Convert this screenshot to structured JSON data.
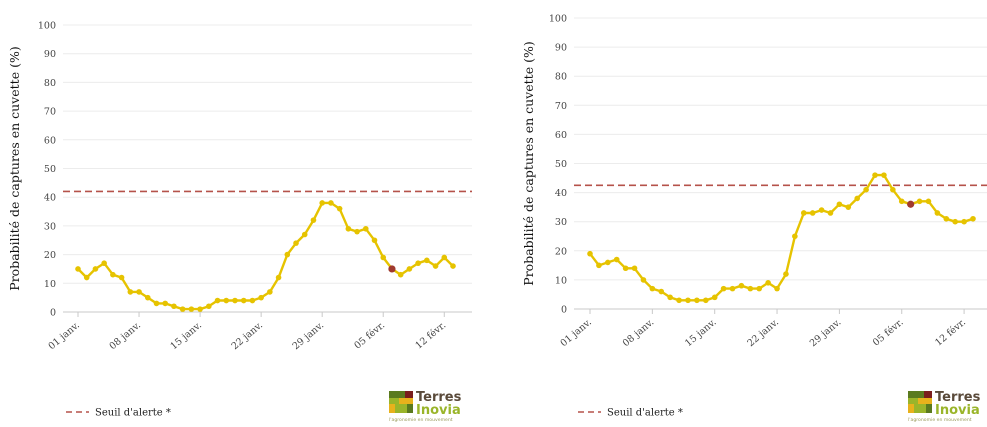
{
  "chart_data": [
    {
      "type": "line",
      "ylabel": "Probabilité de captures en cuvette (%)",
      "ylim": [
        0,
        100
      ],
      "yticks": [
        0,
        10,
        20,
        30,
        40,
        50,
        60,
        70,
        80,
        90,
        100
      ],
      "x_tick_labels": [
        "01 janv.",
        "08 janv.",
        "15 janv.",
        "22 janv.",
        "29 janv.",
        "05 févr.",
        "12 févr."
      ],
      "x_tick_index": [
        0,
        7,
        14,
        21,
        28,
        35,
        42
      ],
      "series": [
        {
          "values": [
            15,
            12,
            15,
            17,
            13,
            12,
            7,
            7,
            5,
            3,
            3,
            2,
            1,
            1,
            1,
            2,
            4,
            4,
            4,
            4,
            4,
            5,
            7,
            12,
            20,
            24,
            27,
            32,
            38,
            38,
            36,
            29,
            28,
            29,
            25,
            19,
            15,
            13,
            15,
            17,
            18,
            16,
            19,
            16
          ],
          "color": "#e6c300",
          "highlight_index": 36,
          "highlight_color": "#a03a2e"
        }
      ],
      "threshold": {
        "label": "Seuil d'alerte *",
        "value": 42,
        "color": "#b5524a",
        "style": "dashed"
      },
      "legend_position": "bottom-left",
      "grid": "horizontal"
    },
    {
      "type": "line",
      "ylabel": "Probabilité de captures en cuvette (%)",
      "ylim": [
        0,
        100
      ],
      "yticks": [
        0,
        10,
        20,
        30,
        40,
        50,
        60,
        70,
        80,
        90,
        100
      ],
      "x_tick_labels": [
        "01 janv.",
        "08 janv.",
        "15 janv.",
        "22 janv.",
        "29 janv.",
        "05 févr.",
        "12 févr."
      ],
      "x_tick_index": [
        0,
        7,
        14,
        21,
        28,
        35,
        42
      ],
      "series": [
        {
          "values": [
            19,
            15,
            16,
            17,
            14,
            14,
            10,
            7,
            6,
            4,
            3,
            3,
            3,
            3,
            4,
            7,
            7,
            8,
            7,
            7,
            9,
            7,
            12,
            25,
            33,
            33,
            34,
            33,
            36,
            35,
            38,
            41,
            46,
            46,
            41,
            37,
            36,
            37,
            37,
            33,
            31,
            30,
            30,
            31
          ],
          "color": "#e6c300",
          "highlight_index": 36,
          "highlight_color": "#a03a2e"
        }
      ],
      "threshold": {
        "label": "Seuil d'alerte *",
        "value": 42.5,
        "color": "#b5524a",
        "style": "dashed"
      },
      "legend_position": "bottom-left",
      "grid": "horizontal"
    }
  ],
  "logos": [
    {
      "name": "Terres",
      "name2": "Inovia",
      "tagline": "l'agronomie en mouvement",
      "colors": [
        "#7a1d1d",
        "#9ab52a",
        "#e8b21c",
        "#5a7a1f"
      ]
    },
    {
      "name": "Terres",
      "name2": "Inovia",
      "tagline": "l'agronomie en mouvement",
      "colors": [
        "#7a1d1d",
        "#9ab52a",
        "#e8b21c",
        "#5a7a1f"
      ]
    }
  ]
}
